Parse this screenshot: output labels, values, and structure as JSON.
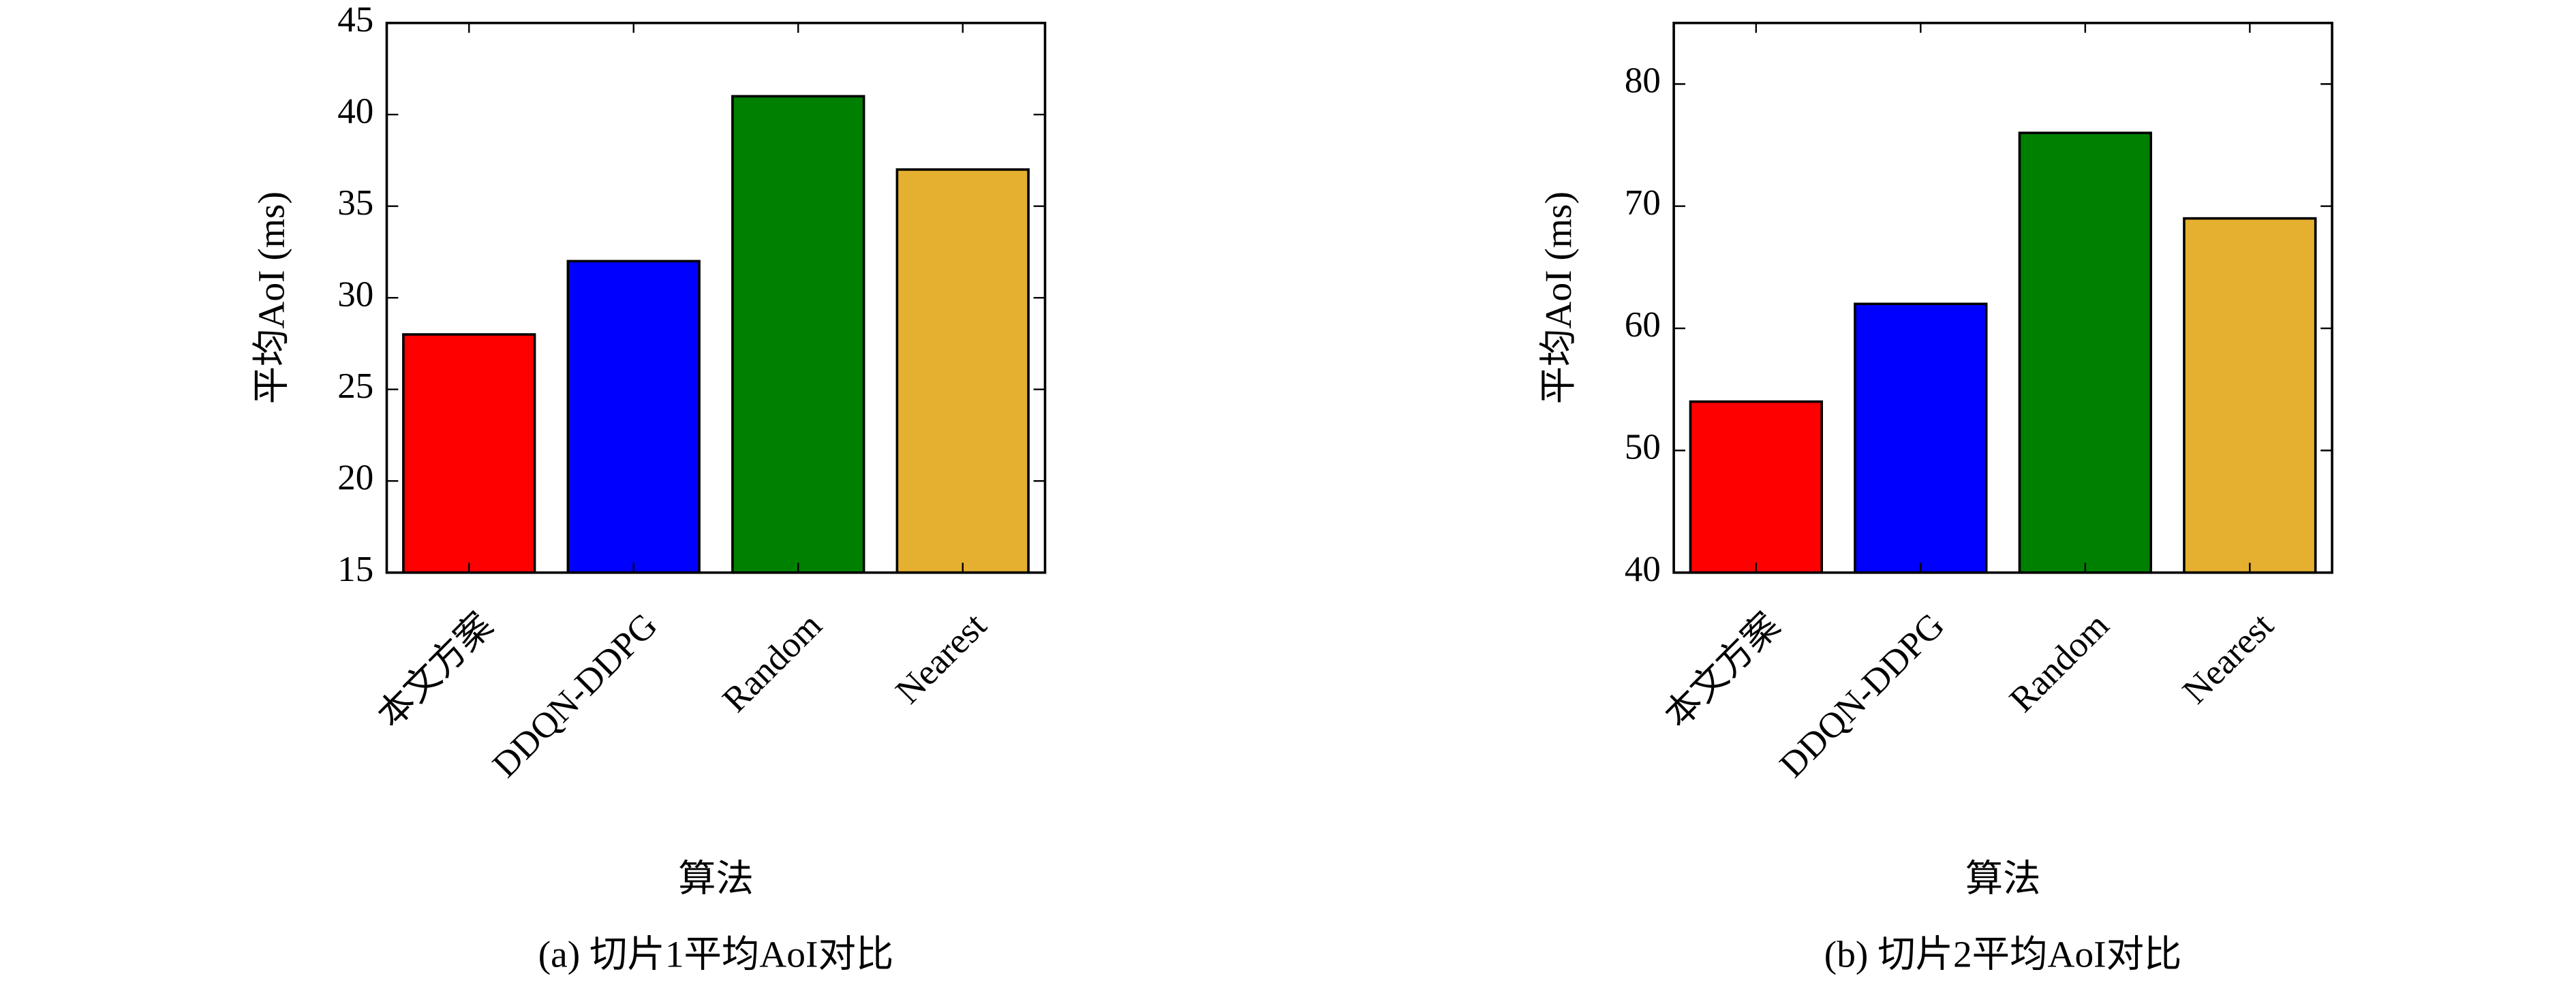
{
  "chart_data": [
    {
      "type": "bar",
      "caption": "(a) 切片1平均AoI对比",
      "ylabel": "平均AoI (ms)",
      "xlabel": "算法",
      "categories": [
        "本文方案",
        "DDQN-DDPG",
        "Random",
        "Nearest"
      ],
      "values": [
        28,
        32,
        41,
        37
      ],
      "colors": [
        "#ff0000",
        "#0000ff",
        "#008000",
        "#e5b030"
      ],
      "ylim": [
        15,
        45
      ],
      "yticks": [
        15,
        20,
        25,
        30,
        35,
        40,
        45
      ]
    },
    {
      "type": "bar",
      "caption": "(b) 切片2平均AoI对比",
      "ylabel": "平均AoI (ms)",
      "xlabel": "算法",
      "categories": [
        "本文方案",
        "DDQN-DDPG",
        "Random",
        "Nearest"
      ],
      "values": [
        54,
        62,
        76,
        69
      ],
      "colors": [
        "#ff0000",
        "#0000ff",
        "#008000",
        "#e5b030"
      ],
      "ylim": [
        40,
        85
      ],
      "yticks": [
        40,
        50,
        60,
        70,
        80
      ]
    }
  ]
}
